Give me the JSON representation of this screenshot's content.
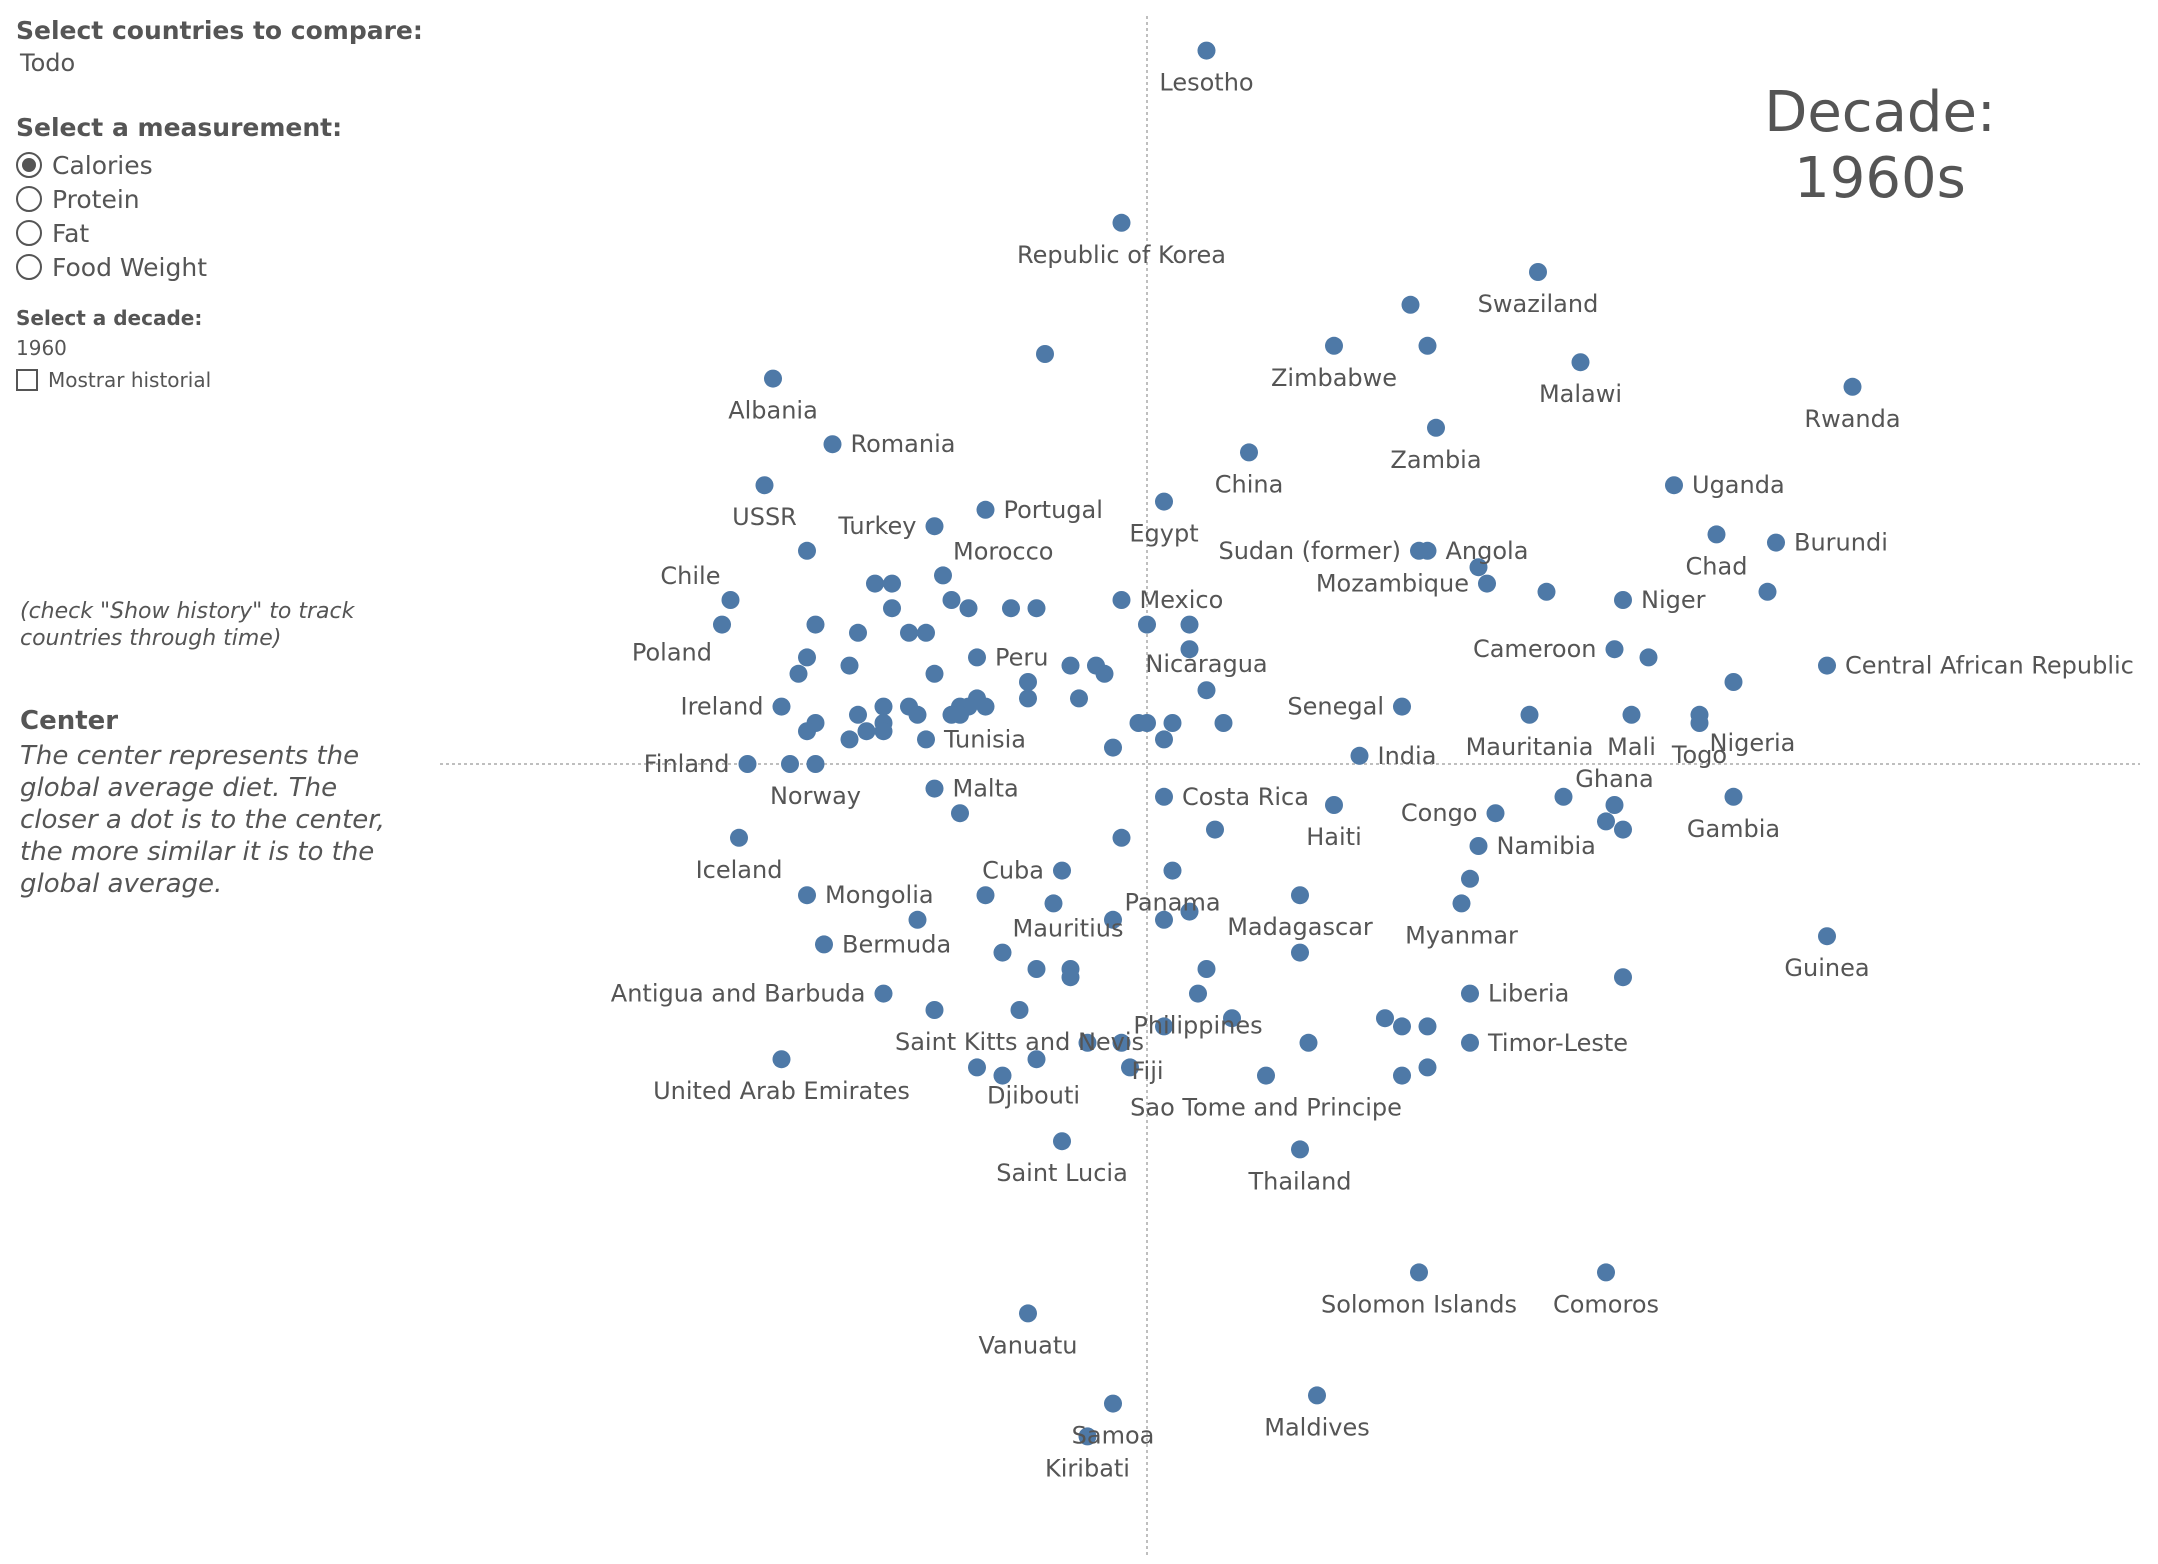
{
  "controls": {
    "compare_label": "Select countries to compare:",
    "compare_value": "Todo",
    "measurement_label": "Select a measurement:",
    "measurements": [
      {
        "label": "Calories",
        "selected": true
      },
      {
        "label": "Protein",
        "selected": false
      },
      {
        "label": "Fat",
        "selected": false
      },
      {
        "label": "Food Weight",
        "selected": false
      }
    ],
    "decade_label": "Select a decade:",
    "decade_value": "1960",
    "history_label": "Mostrar historial",
    "history_checked": false
  },
  "history_note": "(check \"Show history\" to track countries through time)",
  "center": {
    "title": "Center",
    "text": "The center represents the global average diet. The closer a dot is to the center, the more similar it is to the global average."
  },
  "decade_title": {
    "line1": "Decade:",
    "line2": "1960s"
  },
  "colors": {
    "point": "#4e79a7",
    "text": "#555555",
    "axis": "#aaaaaa"
  },
  "chart_data": {
    "type": "scatter",
    "xlim": [
      -100,
      100
    ],
    "ylim": [
      -100,
      100
    ],
    "grid": false,
    "reference_lines": {
      "x": 0,
      "y": 0
    },
    "points": [
      {
        "label": "Lesotho",
        "x": 7,
        "y": 87,
        "pos": "below"
      },
      {
        "label": "Republic of Korea",
        "x": -3,
        "y": 66,
        "pos": "below"
      },
      {
        "label": "Swaziland",
        "x": 46,
        "y": 60,
        "pos": "below"
      },
      {
        "label": "",
        "x": 31,
        "y": 56
      },
      {
        "label": "Zimbabwe",
        "x": 22,
        "y": 51,
        "pos": "below"
      },
      {
        "label": "",
        "x": 33,
        "y": 51
      },
      {
        "label": "Malawi",
        "x": 51,
        "y": 49,
        "pos": "below"
      },
      {
        "label": "Rwanda",
        "x": 83,
        "y": 46,
        "pos": "below"
      },
      {
        "label": "",
        "x": -12,
        "y": 50
      },
      {
        "label": "Albania",
        "x": -44,
        "y": 47,
        "pos": "below"
      },
      {
        "label": "Zambia",
        "x": 34,
        "y": 41,
        "pos": "below"
      },
      {
        "label": "China",
        "x": 12,
        "y": 38,
        "pos": "below"
      },
      {
        "label": "Romania",
        "x": -37,
        "y": 39,
        "pos": "right"
      },
      {
        "label": "USSR",
        "x": -45,
        "y": 34,
        "pos": "below"
      },
      {
        "label": "Uganda",
        "x": 62,
        "y": 34,
        "pos": "right"
      },
      {
        "label": "Egypt",
        "x": 2,
        "y": 32,
        "pos": "below"
      },
      {
        "label": "Portugal",
        "x": -19,
        "y": 31,
        "pos": "right"
      },
      {
        "label": "Turkey",
        "x": -25,
        "y": 29,
        "pos": "left"
      },
      {
        "label": "Chad",
        "x": 67,
        "y": 28,
        "pos": "below"
      },
      {
        "label": "Burundi",
        "x": 74,
        "y": 27,
        "pos": "right"
      },
      {
        "label": "Angola",
        "x": 33,
        "y": 26,
        "pos": "right"
      },
      {
        "label": "Sudan (former)",
        "x": 32,
        "y": 26,
        "pos": "left"
      },
      {
        "label": "",
        "x": -40,
        "y": 26
      },
      {
        "label": "",
        "x": 39,
        "y": 24
      },
      {
        "label": "Mozambique",
        "x": 40,
        "y": 22,
        "pos": "left"
      },
      {
        "label": "Morocco",
        "x": -24,
        "y": 23,
        "pos": "aboveright"
      },
      {
        "label": "",
        "x": -30,
        "y": 22
      },
      {
        "label": "",
        "x": -32,
        "y": 22
      },
      {
        "label": "Niger",
        "x": 56,
        "y": 20,
        "pos": "right"
      },
      {
        "label": "",
        "x": 47,
        "y": 21
      },
      {
        "label": "",
        "x": 73,
        "y": 21
      },
      {
        "label": "Chile",
        "x": -49,
        "y": 20,
        "pos": "aboveleft"
      },
      {
        "label": "",
        "x": -23,
        "y": 20
      },
      {
        "label": "Mexico",
        "x": -3,
        "y": 20,
        "pos": "right"
      },
      {
        "label": "",
        "x": -30,
        "y": 19
      },
      {
        "label": "",
        "x": -21,
        "y": 19
      },
      {
        "label": "",
        "x": -13,
        "y": 19
      },
      {
        "label": "",
        "x": -16,
        "y": 19
      },
      {
        "label": "Poland",
        "x": -50,
        "y": 17,
        "pos": "belowleft"
      },
      {
        "label": "",
        "x": -39,
        "y": 17
      },
      {
        "label": "",
        "x": 0,
        "y": 17
      },
      {
        "label": "",
        "x": 5,
        "y": 17
      },
      {
        "label": "",
        "x": -34,
        "y": 16
      },
      {
        "label": "",
        "x": -26,
        "y": 16
      },
      {
        "label": "",
        "x": -28,
        "y": 16
      },
      {
        "label": "",
        "x": 5,
        "y": 14
      },
      {
        "label": "Cameroon",
        "x": 55,
        "y": 14,
        "pos": "left"
      },
      {
        "label": "",
        "x": 59,
        "y": 13
      },
      {
        "label": "Peru",
        "x": -20,
        "y": 13,
        "pos": "right"
      },
      {
        "label": "",
        "x": -40,
        "y": 13
      },
      {
        "label": "Central African Republic",
        "x": 80,
        "y": 12,
        "pos": "right"
      },
      {
        "label": "",
        "x": -9,
        "y": 12
      },
      {
        "label": "",
        "x": -6,
        "y": 12
      },
      {
        "label": "",
        "x": -41,
        "y": 11
      },
      {
        "label": "",
        "x": -25,
        "y": 11
      },
      {
        "label": "",
        "x": -5,
        "y": 11
      },
      {
        "label": "",
        "x": -35,
        "y": 12
      },
      {
        "label": "",
        "x": 69,
        "y": 10
      },
      {
        "label": "",
        "x": -14,
        "y": 10
      },
      {
        "label": "Nicaragua",
        "x": 7,
        "y": 9,
        "pos": "above"
      },
      {
        "label": "",
        "x": -14,
        "y": 8
      },
      {
        "label": "",
        "x": -20,
        "y": 8
      },
      {
        "label": "",
        "x": -8,
        "y": 8
      },
      {
        "label": "Ireland",
        "x": -43,
        "y": 7,
        "pos": "left"
      },
      {
        "label": "Senegal",
        "x": 30,
        "y": 7,
        "pos": "left"
      },
      {
        "label": "",
        "x": -31,
        "y": 7
      },
      {
        "label": "Nigeria",
        "x": 65,
        "y": 6,
        "pos": "belowright"
      },
      {
        "label": "",
        "x": -28,
        "y": 7
      },
      {
        "label": "",
        "x": -27,
        "y": 6
      },
      {
        "label": "",
        "x": -22,
        "y": 7
      },
      {
        "label": "",
        "x": -21,
        "y": 7
      },
      {
        "label": "",
        "x": -19,
        "y": 7
      },
      {
        "label": "",
        "x": -22,
        "y": 6
      },
      {
        "label": "",
        "x": -23,
        "y": 6
      },
      {
        "label": "Mauritania",
        "x": 45,
        "y": 6,
        "pos": "below"
      },
      {
        "label": "Mali",
        "x": 57,
        "y": 6,
        "pos": "below"
      },
      {
        "label": "",
        "x": -34,
        "y": 6
      },
      {
        "label": "",
        "x": -39,
        "y": 5
      },
      {
        "label": "",
        "x": -31,
        "y": 5
      },
      {
        "label": "",
        "x": 3,
        "y": 5
      },
      {
        "label": "",
        "x": 9,
        "y": 5
      },
      {
        "label": "Togo",
        "x": 65,
        "y": 5,
        "pos": "below"
      },
      {
        "label": "",
        "x": -1,
        "y": 5
      },
      {
        "label": "",
        "x": 0,
        "y": 5
      },
      {
        "label": "",
        "x": -31,
        "y": 4
      },
      {
        "label": "",
        "x": -33,
        "y": 4
      },
      {
        "label": "",
        "x": -40,
        "y": 4
      },
      {
        "label": "",
        "x": -35,
        "y": 3
      },
      {
        "label": "Tunisia",
        "x": -26,
        "y": 3,
        "pos": "right"
      },
      {
        "label": "",
        "x": 2,
        "y": 3
      },
      {
        "label": "",
        "x": -4,
        "y": 2
      },
      {
        "label": "India",
        "x": 25,
        "y": 1,
        "pos": "right"
      },
      {
        "label": "Finland",
        "x": -47,
        "y": 0,
        "pos": "left"
      },
      {
        "label": "",
        "x": -42,
        "y": 0
      },
      {
        "label": "Norway",
        "x": -39,
        "y": 0,
        "pos": "below"
      },
      {
        "label": "Malta",
        "x": -25,
        "y": -3,
        "pos": "right"
      },
      {
        "label": "Costa Rica",
        "x": 2,
        "y": -4,
        "pos": "right"
      },
      {
        "label": "",
        "x": 49,
        "y": -4
      },
      {
        "label": "Ghana",
        "x": 55,
        "y": -5,
        "pos": "above"
      },
      {
        "label": "Gambia",
        "x": 69,
        "y": -4,
        "pos": "below"
      },
      {
        "label": "Haiti",
        "x": 22,
        "y": -5,
        "pos": "below"
      },
      {
        "label": "",
        "x": -22,
        "y": -6
      },
      {
        "label": "Congo",
        "x": 41,
        "y": -6,
        "pos": "left"
      },
      {
        "label": "",
        "x": 54,
        "y": -7
      },
      {
        "label": "",
        "x": 56,
        "y": -8
      },
      {
        "label": "",
        "x": 8,
        "y": -8
      },
      {
        "label": "Iceland",
        "x": -48,
        "y": -9,
        "pos": "below"
      },
      {
        "label": "",
        "x": -3,
        "y": -9
      },
      {
        "label": "Namibia",
        "x": 39,
        "y": -10,
        "pos": "right"
      },
      {
        "label": "Cuba",
        "x": -10,
        "y": -13,
        "pos": "left"
      },
      {
        "label": "Panama",
        "x": 3,
        "y": -13,
        "pos": "below"
      },
      {
        "label": "",
        "x": 38,
        "y": -14
      },
      {
        "label": "Madagascar",
        "x": 18,
        "y": -16,
        "pos": "below"
      },
      {
        "label": "Mongolia",
        "x": -40,
        "y": -16,
        "pos": "right"
      },
      {
        "label": "",
        "x": -19,
        "y": -16
      },
      {
        "label": "Myanmar",
        "x": 37,
        "y": -17,
        "pos": "below"
      },
      {
        "label": "",
        "x": -11,
        "y": -17
      },
      {
        "label": "",
        "x": 5,
        "y": -18
      },
      {
        "label": "",
        "x": -27,
        "y": -19
      },
      {
        "label": "",
        "x": -4,
        "y": -19
      },
      {
        "label": "",
        "x": 2,
        "y": -19
      },
      {
        "label": "Guinea",
        "x": 80,
        "y": -21,
        "pos": "below"
      },
      {
        "label": "Bermuda",
        "x": -38,
        "y": -22,
        "pos": "right"
      },
      {
        "label": "Mauritius",
        "x": -17,
        "y": -23,
        "pos": "aboveright"
      },
      {
        "label": "",
        "x": 18,
        "y": -23
      },
      {
        "label": "",
        "x": -13,
        "y": -25
      },
      {
        "label": "",
        "x": -9,
        "y": -25
      },
      {
        "label": "",
        "x": 7,
        "y": -25
      },
      {
        "label": "",
        "x": -9,
        "y": -26
      },
      {
        "label": "",
        "x": 56,
        "y": -26
      },
      {
        "label": "Antigua and Barbuda",
        "x": -31,
        "y": -28,
        "pos": "left"
      },
      {
        "label": "Liberia",
        "x": 38,
        "y": -28,
        "pos": "right"
      },
      {
        "label": "Philippines",
        "x": 6,
        "y": -28,
        "pos": "below"
      },
      {
        "label": "",
        "x": -25,
        "y": -30
      },
      {
        "label": "Saint Kitts and Nevis",
        "x": -15,
        "y": -30,
        "pos": "below"
      },
      {
        "label": "",
        "x": 10,
        "y": -31
      },
      {
        "label": "",
        "x": 28,
        "y": -31
      },
      {
        "label": "",
        "x": 30,
        "y": -32
      },
      {
        "label": "",
        "x": 33,
        "y": -32
      },
      {
        "label": "",
        "x": 2,
        "y": -32
      },
      {
        "label": "",
        "x": 19,
        "y": -34
      },
      {
        "label": "Timor-Leste",
        "x": 38,
        "y": -34,
        "pos": "right"
      },
      {
        "label": "",
        "x": -7,
        "y": -34
      },
      {
        "label": "Fiji",
        "x": -3,
        "y": -34,
        "pos": "belowright"
      },
      {
        "label": "United Arab Emirates",
        "x": -43,
        "y": -36,
        "pos": "below"
      },
      {
        "label": "",
        "x": -13,
        "y": -36
      },
      {
        "label": "Djibouti",
        "x": -20,
        "y": -37,
        "pos": "belowright"
      },
      {
        "label": "",
        "x": -17,
        "y": -38
      },
      {
        "label": "",
        "x": -2,
        "y": -37
      },
      {
        "label": "Sao Tome and Principe",
        "x": 14,
        "y": -38,
        "pos": "below"
      },
      {
        "label": "",
        "x": 30,
        "y": -38
      },
      {
        "label": "",
        "x": 33,
        "y": -37
      },
      {
        "label": "Saint Lucia",
        "x": -10,
        "y": -46,
        "pos": "below"
      },
      {
        "label": "Thailand",
        "x": 18,
        "y": -47,
        "pos": "below"
      },
      {
        "label": "Solomon Islands",
        "x": 32,
        "y": -62,
        "pos": "below"
      },
      {
        "label": "Comoros",
        "x": 54,
        "y": -62,
        "pos": "below"
      },
      {
        "label": "Vanuatu",
        "x": -14,
        "y": -67,
        "pos": "below"
      },
      {
        "label": "Maldives",
        "x": 20,
        "y": -77,
        "pos": "below"
      },
      {
        "label": "Samoa",
        "x": -4,
        "y": -78,
        "pos": "below"
      },
      {
        "label": "Kiribati",
        "x": -7,
        "y": -82,
        "pos": "below"
      }
    ]
  }
}
